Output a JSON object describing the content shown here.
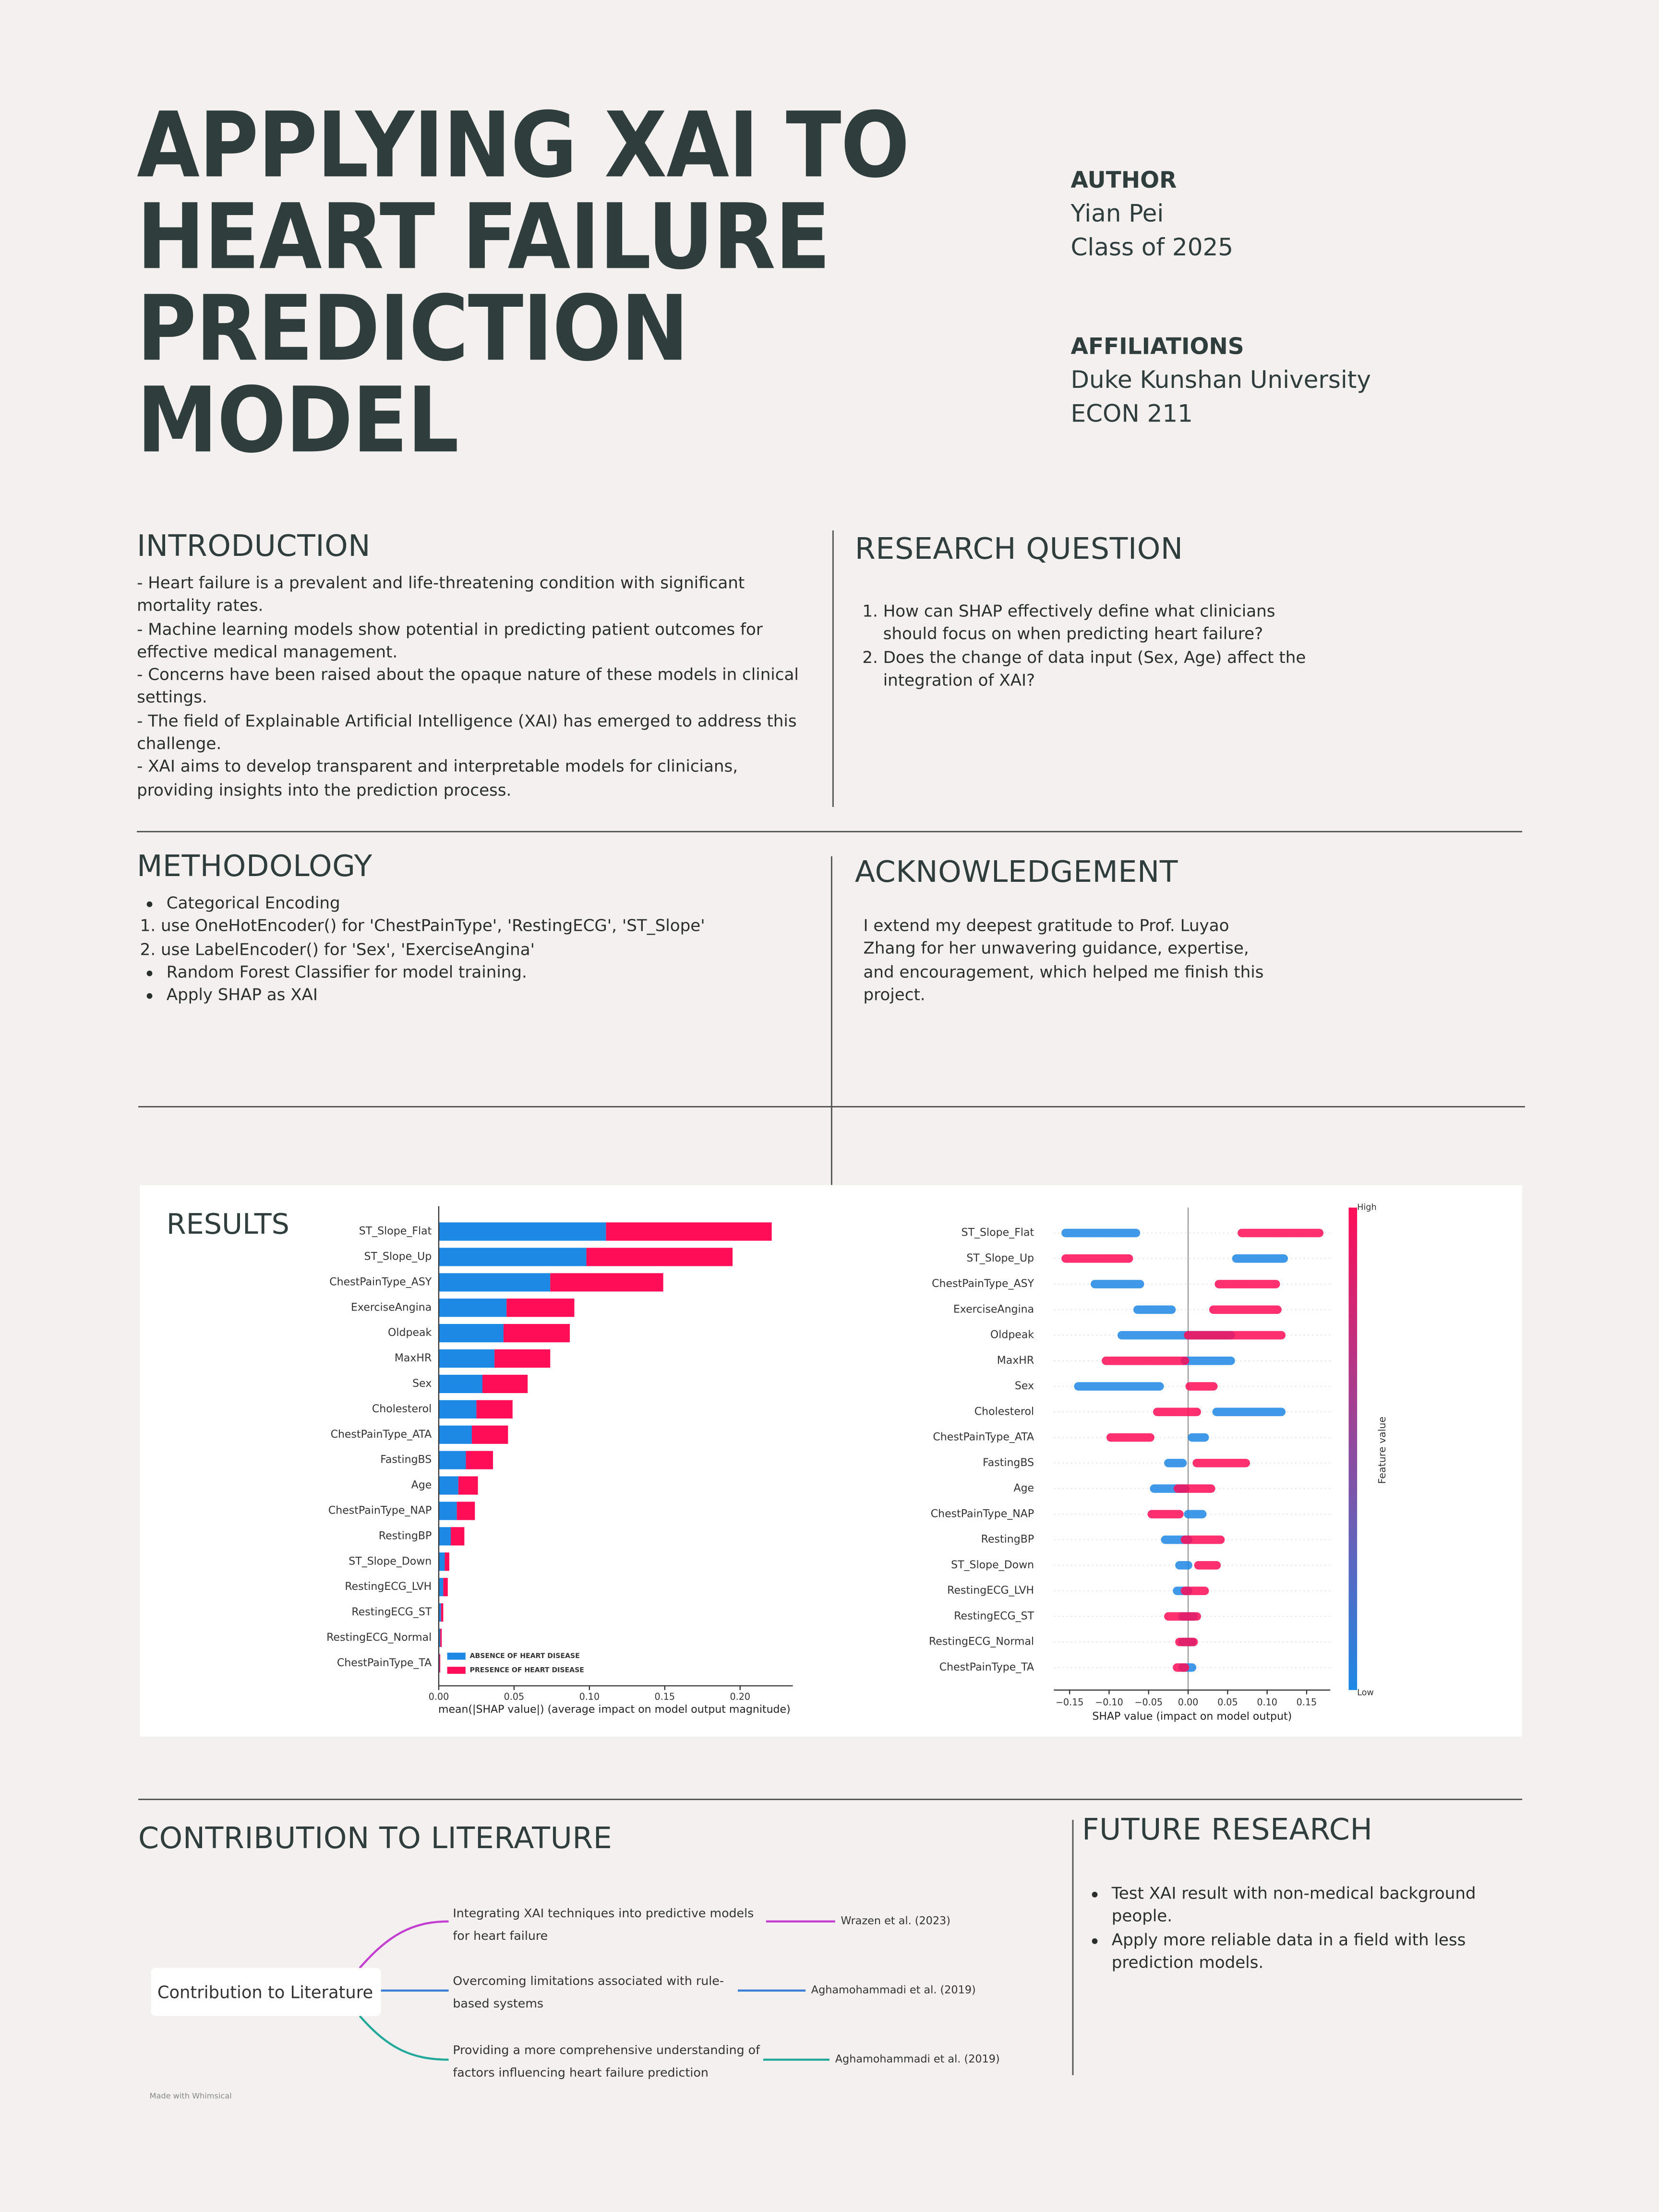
{
  "header": {
    "title_lines": [
      "APPLYING XAI TO",
      "HEART FAILURE",
      "PREDICTION",
      "MODEL"
    ],
    "author_heading": "AUTHOR",
    "author": "Yian Pei",
    "author_class": "Class of 2025",
    "affiliations_heading": "AFFILIATIONS",
    "affiliations": [
      "Duke Kunshan University",
      "ECON 211"
    ]
  },
  "introduction": {
    "heading": "INTRODUCTION",
    "items": [
      "- Heart failure is a prevalent and life-threatening condition with significant mortality rates.",
      "- Machine learning models show potential in predicting patient outcomes for effective medical management.",
      "- Concerns have been raised about the opaque nature of these models in clinical settings.",
      "- The field of Explainable Artificial Intelligence (XAI) has emerged to address this challenge.",
      "- XAI aims to develop transparent and interpretable models for clinicians, providing insights into the prediction process."
    ]
  },
  "research_question": {
    "heading": "RESEARCH QUESTION",
    "items": [
      "How can SHAP effectively define what clinicians should focus on when predicting heart failure?",
      "Does the change of data input (Sex, Age) affect the integration of XAI?"
    ]
  },
  "methodology": {
    "heading": "METHODOLOGY",
    "items": [
      {
        "text": "Categorical Encoding",
        "steps": [
          "use OneHotEncoder() for 'ChestPainType', 'RestingECG', 'ST_Slope'",
          "use LabelEncoder() for 'Sex', 'ExerciseAngina'"
        ]
      },
      {
        "text": "Random Forest Classifier for model training."
      },
      {
        "text": "Apply SHAP as XAI"
      }
    ]
  },
  "acknowledgement": {
    "heading": "ACKNOWLEDGEMENT",
    "text": "I extend my deepest gratitude to Prof. Luyao Zhang for her unwavering guidance, expertise, and encouragement, which helped me finish this project."
  },
  "results": {
    "heading": "RESULTS"
  },
  "chart_data": [
    {
      "type": "bar",
      "orientation": "horizontal",
      "stacked": true,
      "categories": [
        "ST_Slope_Flat",
        "ST_Slope_Up",
        "ChestPainType_ASY",
        "ExerciseAngina",
        "Oldpeak",
        "MaxHR",
        "Sex",
        "Cholesterol",
        "ChestPainType_ATA",
        "FastingBS",
        "Age",
        "ChestPainType_NAP",
        "RestingBP",
        "ST_Slope_Down",
        "RestingECG_LVH",
        "RestingECG_ST",
        "RestingECG_Normal",
        "ChestPainType_TA"
      ],
      "series": [
        {
          "name": "ABSENCE OF HEART DISEASE",
          "color": "#1e88e5",
          "values": [
            0.111,
            0.098,
            0.074,
            0.045,
            0.043,
            0.037,
            0.029,
            0.025,
            0.022,
            0.018,
            0.013,
            0.012,
            0.008,
            0.004,
            0.003,
            0.0015,
            0.001,
            0.0005
          ]
        },
        {
          "name": "PRESENCE OF HEART DISEASE",
          "color": "#ff0d57",
          "values": [
            0.11,
            0.097,
            0.075,
            0.045,
            0.044,
            0.037,
            0.03,
            0.024,
            0.024,
            0.018,
            0.013,
            0.012,
            0.009,
            0.003,
            0.003,
            0.0015,
            0.001,
            0.0005
          ]
        }
      ],
      "xlabel": "mean(|SHAP value|) (average impact on model output magnitude)",
      "xlim": [
        0,
        0.235
      ],
      "xticks": [
        {
          "value": 0,
          "label": "0.00"
        },
        0.05,
        {
          "value": 0.1,
          "label": "0.10"
        },
        0.15,
        {
          "value": 0.2,
          "label": "0.20"
        }
      ],
      "legend": "lower left"
    },
    {
      "type": "beeswarm",
      "categories": [
        "ST_Slope_Flat",
        "ST_Slope_Up",
        "ChestPainType_ASY",
        "ExerciseAngina",
        "Oldpeak",
        "MaxHR",
        "Sex",
        "Cholesterol",
        "ChestPainType_ATA",
        "FastingBS",
        "Age",
        "ChestPainType_NAP",
        "RestingBP",
        "ST_Slope_Down",
        "RestingECG_LVH",
        "RestingECG_ST",
        "RestingECG_Normal",
        "ChestPainType_TA"
      ],
      "series": [
        {
          "name": "Low",
          "color": "#1e88e5",
          "values": [
            [
              -0.155,
              -0.066
            ],
            [
              0.061,
              0.121
            ],
            [
              -0.118,
              -0.061
            ],
            [
              -0.064,
              -0.021
            ],
            [
              -0.084,
              0.054
            ],
            [
              -0.004,
              0.054
            ],
            [
              -0.139,
              -0.036
            ],
            [
              0.036,
              0.118
            ],
            [
              0.005,
              0.021
            ],
            [
              -0.025,
              -0.007
            ],
            [
              -0.043,
              -0.004
            ],
            [
              0,
              0.018
            ],
            [
              -0.029,
              0
            ],
            [
              -0.011,
              0
            ],
            [
              -0.014,
              0
            ],
            [
              -0.007,
              0.007
            ],
            [
              -0.007,
              0.005
            ],
            [
              -0.007,
              0.005
            ]
          ]
        },
        {
          "name": "High",
          "color": "#ff0d57",
          "values": [
            [
              0.068,
              0.166
            ],
            [
              -0.155,
              -0.075
            ],
            [
              0.039,
              0.111
            ],
            [
              0.032,
              0.113
            ],
            [
              0,
              0.118
            ],
            [
              -0.104,
              -0.004
            ],
            [
              0.002,
              0.032
            ],
            [
              -0.039,
              0.011
            ],
            [
              -0.098,
              -0.048
            ],
            [
              0.011,
              0.073
            ],
            [
              -0.013,
              0.029
            ],
            [
              -0.046,
              -0.011
            ],
            [
              -0.004,
              0.041
            ],
            [
              0.013,
              0.036
            ],
            [
              -0.004,
              0.021
            ],
            [
              -0.025,
              0.011
            ],
            [
              -0.011,
              0.007
            ],
            [
              -0.014,
              -0.004
            ]
          ]
        }
      ],
      "xlabel": "SHAP value (impact on model output)",
      "colorbar_label": "Feature value",
      "xlim": [
        -0.17,
        0.18
      ],
      "xticks": [
        {
          "value": -0.15,
          "label": "−0.15"
        },
        {
          "value": -0.1,
          "label": "−0.10"
        },
        {
          "value": -0.05,
          "label": "−0.05"
        },
        {
          "value": 0,
          "label": "0.00"
        },
        0.05,
        {
          "value": 0.1,
          "label": "0.10"
        },
        0.15
      ]
    }
  ],
  "contribution": {
    "heading": "CONTRIBUTION TO LITERATURE",
    "diagram": {
      "root": "Contribution to Literature",
      "branches": [
        {
          "text": "Integrating XAI techniques into predictive models for heart failure",
          "citation": "Wrazen et al. (2023)"
        },
        {
          "text": "Overcoming limitations associated with rule-based systems",
          "citation": "Aghamohammadi et al. (2019)"
        },
        {
          "text": "Providing a more comprehensive understanding of factors influencing heart failure prediction",
          "citation": "Aghamohammadi et al. (2019)"
        }
      ]
    },
    "credit": "Made with Whimsical"
  },
  "future_research": {
    "heading": "FUTURE RESEARCH",
    "items": [
      "Test XAI result with non-medical background people.",
      "Apply more reliable data in a field with less prediction models."
    ]
  }
}
